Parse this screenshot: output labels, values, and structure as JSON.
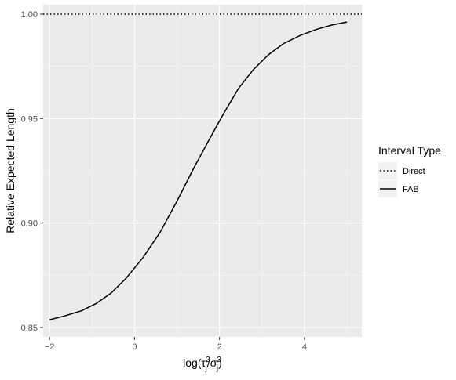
{
  "chart_data": {
    "type": "line",
    "title": "",
    "xlabel": "log(τj²/σj²)",
    "ylabel": "Relative Expected Length",
    "xlim": [
      -2.15,
      5.35
    ],
    "ylim": [
      0.8455,
      1.0045
    ],
    "x_ticks": [
      -2,
      0,
      2,
      4
    ],
    "x_tick_labels": [
      "−2",
      "0",
      "2",
      "4"
    ],
    "y_ticks": [
      0.85,
      0.9,
      0.95,
      1.0
    ],
    "y_tick_labels": [
      "0.85",
      "0.90",
      "0.95",
      "1.00"
    ],
    "grid": true,
    "legend": {
      "title": "Interval Type",
      "position": "right",
      "entries": [
        "Direct",
        "FAB"
      ]
    },
    "series": [
      {
        "name": "Direct",
        "line_style": "dotted",
        "color": "#000000",
        "x": [
          -2.15,
          5.35
        ],
        "y": [
          1.0,
          1.0
        ]
      },
      {
        "name": "FAB",
        "line_style": "solid",
        "color": "#000000",
        "x": [
          -2.0,
          -1.65,
          -1.25,
          -0.9,
          -0.55,
          -0.2,
          0.2,
          0.6,
          1.0,
          1.4,
          1.8,
          2.1,
          2.45,
          2.8,
          3.15,
          3.5,
          3.9,
          4.3,
          4.65,
          5.0
        ],
        "y": [
          0.8537,
          0.8555,
          0.858,
          0.8615,
          0.8665,
          0.8735,
          0.8835,
          0.8955,
          0.9105,
          0.9265,
          0.9415,
          0.9525,
          0.9645,
          0.9735,
          0.9805,
          0.9858,
          0.9898,
          0.9928,
          0.9948,
          0.9962
        ]
      }
    ]
  },
  "colors": {
    "panel_background": "#ebebeb",
    "major_grid": "#ffffff",
    "minor_grid": "#f5f5f5",
    "line": "#000000",
    "tick_text": "#4d4d4d"
  }
}
